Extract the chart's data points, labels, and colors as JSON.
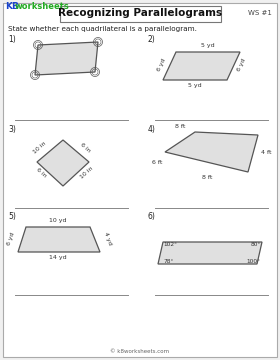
{
  "title": "Recognizing Parallelograms",
  "ws_number": "WS #1",
  "subtitle": "State whether each quadrilateral is a parallelogram.",
  "footer": "© k8worksheets.com",
  "bg": "#f0f0f0",
  "inner_bg": "#ffffff",
  "shape_fill": "#e0e0e0",
  "shape_edge": "#555555",
  "text_color": "#222222",
  "line_color": "#888888"
}
